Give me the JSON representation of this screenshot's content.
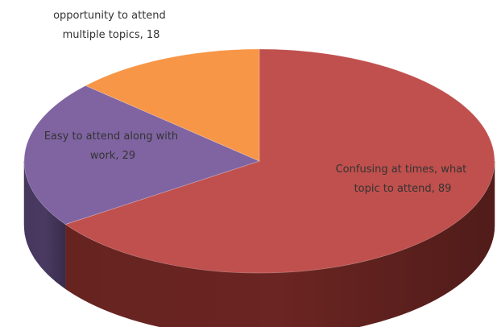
{
  "chart_data": {
    "type": "pie",
    "style": "3d",
    "title": "",
    "slices": [
      {
        "label_lines": [
          "Confusing at times, what",
          "topic to attend, 89"
        ],
        "category": "Confusing at times, what topic to attend",
        "value": 89,
        "color": "#C0504D",
        "side_color": "#6B2522"
      },
      {
        "label_lines": [
          "Easy to attend along with",
          "work, 29"
        ],
        "category": "Easy to attend along with work",
        "value": 29,
        "color": "#8064A2",
        "side_color": "#4A3A63"
      },
      {
        "label_lines": [
          "opportunity to attend",
          "multiple topics, 18"
        ],
        "category": "opportunity to attend multiple topics",
        "value": 18,
        "color": "#F79646",
        "side_color": "#A65F22"
      }
    ],
    "start_angle_deg": 270,
    "direction": "clockwise",
    "legend": "none",
    "data_labels": "category and value"
  }
}
